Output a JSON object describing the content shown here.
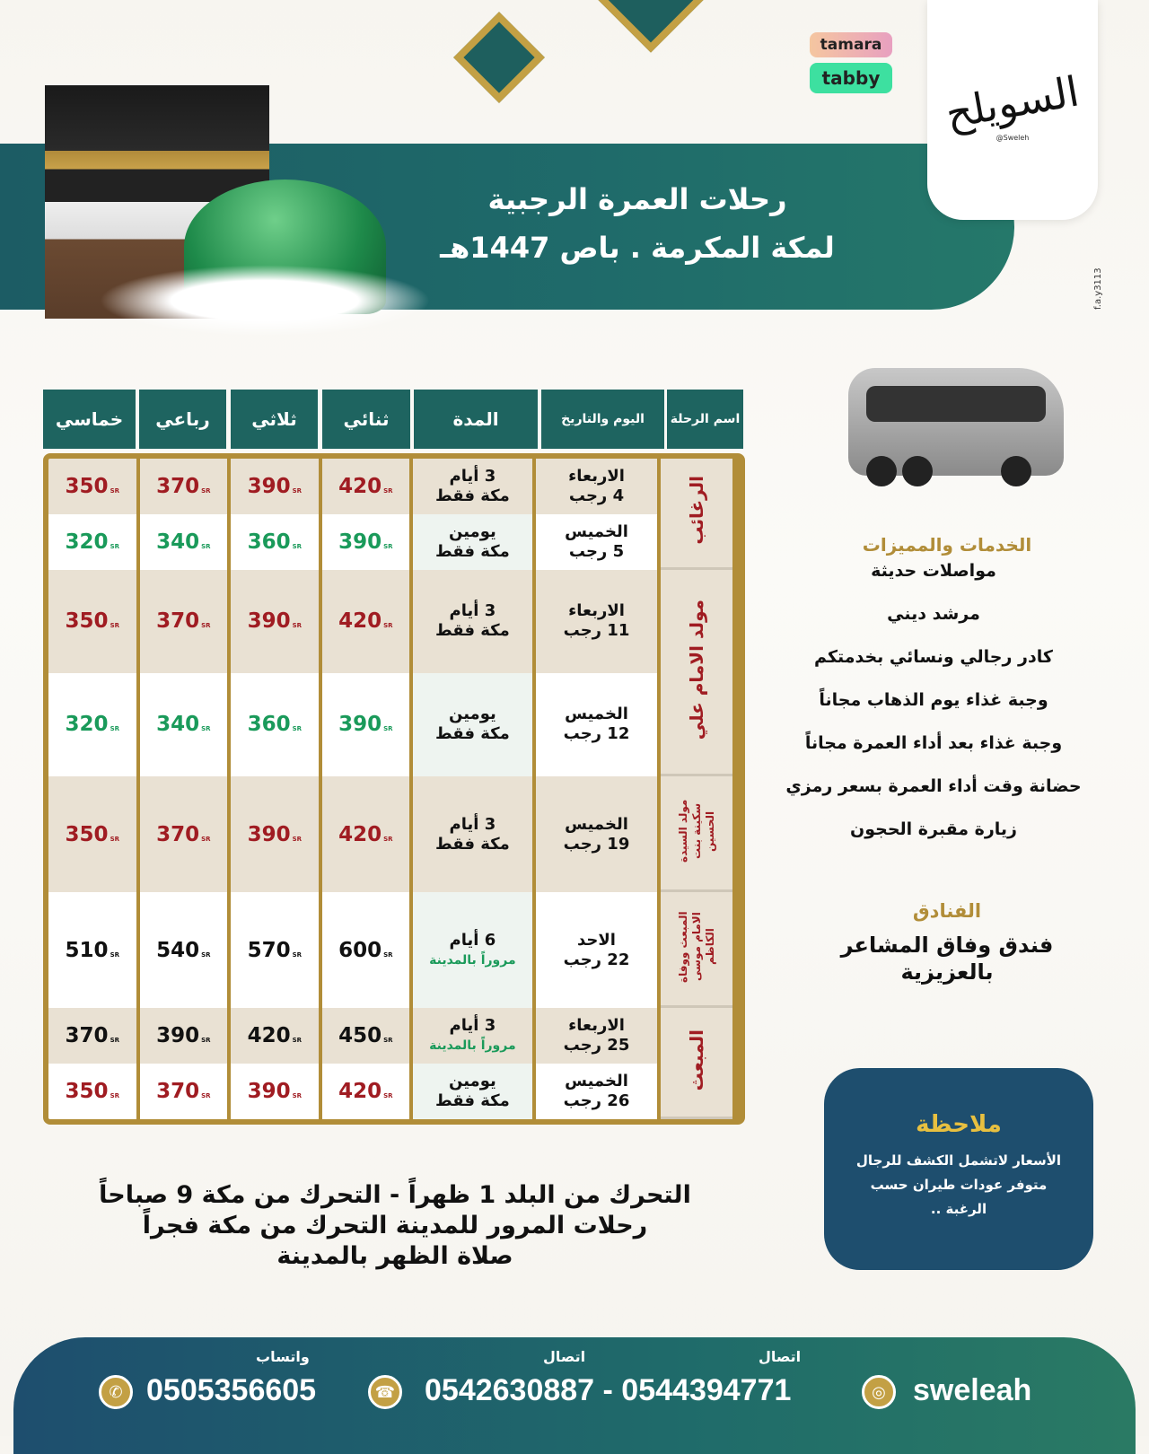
{
  "brand": {
    "logo_text": "السويلح",
    "logo_handle": "@Sweleh",
    "side_handle": "f.a.y3113"
  },
  "payments": [
    "tamara",
    "tabby"
  ],
  "title": {
    "line1": "رحلات العمرة الرجبية",
    "line2": "لمكة المكرمة . باص 1447هـ"
  },
  "table": {
    "headers": [
      "اسم الرحلة",
      "اليوم والتاريخ",
      "المدة",
      "ثنائي",
      "ثلاثي",
      "رباعي",
      "خماسي"
    ],
    "currency": "SR",
    "groups": [
      {
        "name": "الرغائب",
        "rows": [
          0,
          1
        ]
      },
      {
        "name": "مولد الامام علي",
        "rows": [
          2,
          3
        ]
      },
      {
        "name": "مولد السيدة سكينة بنت الحسين",
        "rows": [
          4
        ]
      },
      {
        "name": "المبعث ووفاة الامام موسى الكاظم",
        "rows": [
          5
        ]
      },
      {
        "name": "المبعث",
        "rows": [
          6,
          7
        ]
      }
    ],
    "rows": [
      {
        "day": "الاربعاء",
        "date": "4 رجب",
        "duration": "3 أيام",
        "route": "مكة فقط",
        "prices": [
          "420",
          "390",
          "370",
          "350"
        ],
        "color": "red"
      },
      {
        "day": "الخميس",
        "date": "5 رجب",
        "duration": "يومين",
        "route": "مكة فقط",
        "prices": [
          "390",
          "360",
          "340",
          "320"
        ],
        "color": "green"
      },
      {
        "day": "الاربعاء",
        "date": "11 رجب",
        "duration": "3 أيام",
        "route": "مكة فقط",
        "prices": [
          "420",
          "390",
          "370",
          "350"
        ],
        "color": "red"
      },
      {
        "day": "الخميس",
        "date": "12 رجب",
        "duration": "يومين",
        "route": "مكة فقط",
        "prices": [
          "390",
          "360",
          "340",
          "320"
        ],
        "color": "green"
      },
      {
        "day": "الخميس",
        "date": "19 رجب",
        "duration": "3 أيام",
        "route": "مكة فقط",
        "prices": [
          "420",
          "390",
          "370",
          "350"
        ],
        "color": "red"
      },
      {
        "day": "الاحد",
        "date": "22 رجب",
        "duration": "6 أيام",
        "route": "مروراً بالمدينة",
        "prices": [
          "600",
          "570",
          "540",
          "510"
        ],
        "color": "black"
      },
      {
        "day": "الاربعاء",
        "date": "25 رجب",
        "duration": "3 أيام",
        "route": "مروراً بالمدينة",
        "prices": [
          "450",
          "420",
          "390",
          "370"
        ],
        "color": "black"
      },
      {
        "day": "الخميس",
        "date": "26 رجب",
        "duration": "يومين",
        "route": "مكة فقط",
        "prices": [
          "420",
          "390",
          "370",
          "350"
        ],
        "color": "red"
      }
    ]
  },
  "services": {
    "heading": "الخدمات والمميزات",
    "items": [
      "مواصلات حديثة",
      "مرشد ديني",
      "كادر رجالي ونسائي بخدمتكم",
      "وجبة غذاء يوم الذهاب مجاناً",
      "وجبة غذاء بعد أداء العمرة مجاناً",
      "حضانة وقت أداء العمرة بسعر رمزي",
      "زيارة مقبرة الحجون"
    ]
  },
  "hotels": {
    "heading": "الفنادق",
    "line1": "فندق وفاق المشاعر",
    "line2": "بالعزيزية"
  },
  "note": {
    "heading": "ملاحظة",
    "lines": [
      "الأسعار لاتشمل الكشف للرجال",
      "متوفر عودات طيران حسب",
      "الرغبة .."
    ]
  },
  "schedule": [
    "التحرك من البلد 1 ظهراً - التحرك من مكة 9 صباحاً",
    "رحلات المرور للمدينة التحرك من مكة فجراً",
    "صلاة الظهر بالمدينة"
  ],
  "footer": {
    "whatsapp_label": "واتساب",
    "whatsapp": "0505356605",
    "call_label1": "اتصال",
    "call_label2": "اتصال",
    "phones": "0542630887 - 0544394771",
    "instagram": "sweleah"
  },
  "colors": {
    "teal": "#1e6460",
    "gold": "#b18d38",
    "red": "#a01c22",
    "green": "#1a9a5a",
    "navy": "#1e4e6e"
  }
}
